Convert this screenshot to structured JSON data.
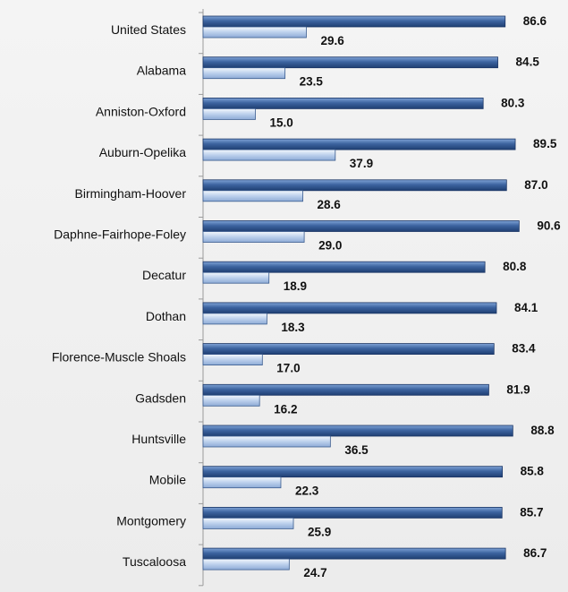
{
  "chart_data": {
    "type": "bar",
    "orientation": "horizontal",
    "categories": [
      "United States",
      "Alabama",
      "Anniston-Oxford",
      "Auburn-Opelika",
      "Birmingham-Hoover",
      "Daphne-Fairhope-Foley",
      "Decatur",
      "Dothan",
      "Florence-Muscle Shoals",
      "Gadsden",
      "Huntsville",
      "Mobile",
      "Montgomery",
      "Tuscaloosa"
    ],
    "series": [
      {
        "values": [
          86.6,
          84.5,
          80.3,
          89.5,
          87.0,
          90.6,
          80.8,
          84.1,
          83.4,
          81.9,
          88.8,
          85.8,
          85.7,
          86.7
        ]
      },
      {
        "values": [
          29.6,
          23.5,
          15.0,
          37.9,
          28.6,
          29.0,
          18.9,
          18.3,
          17.0,
          16.2,
          36.5,
          22.3,
          25.9,
          24.7
        ]
      }
    ],
    "value_labels": {
      "series_0": [
        "86.6",
        "84.5",
        "80.3",
        "89.5",
        "87.0",
        "90.6",
        "80.8",
        "84.1",
        "83.4",
        "81.9",
        "88.8",
        "85.8",
        "85.7",
        "86.7"
      ],
      "series_1": [
        "29.6",
        "23.5",
        "15.0",
        "37.9",
        "28.6",
        "29.0",
        "18.9",
        "18.3",
        "17.0",
        "16.2",
        "36.5",
        "22.3",
        "25.9",
        "24.7"
      ]
    },
    "xlim": [
      0,
      100
    ],
    "grid": false,
    "legend": "none",
    "colors": {
      "series_0_dark": "#2a4f86",
      "series_0_light": "#6d93c8",
      "series_1_dark": "#5f82b6",
      "series_1_light": "#d3e0f2",
      "axis": "#9a9a9a"
    }
  }
}
